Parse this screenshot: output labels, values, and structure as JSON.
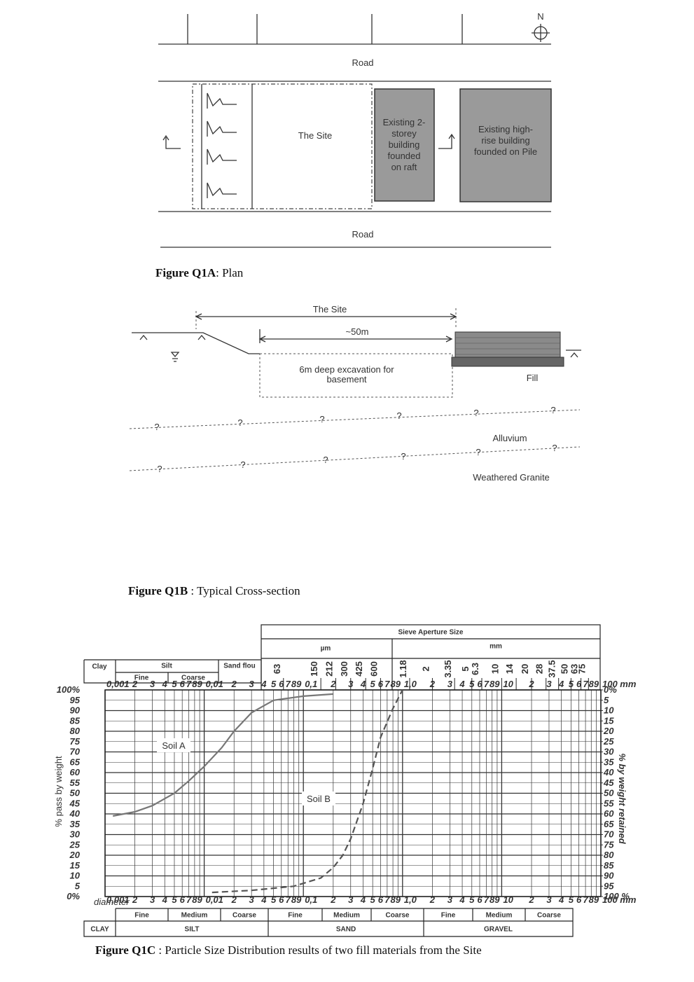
{
  "figure_a": {
    "north": "N",
    "road_top": "Road",
    "site": "The Site",
    "building_1_lines": [
      "Existing 2-",
      "storey",
      "building",
      "founded",
      "on raft"
    ],
    "building_2_lines": [
      "Existing high-",
      "rise building",
      "founded on Pile"
    ],
    "road_bottom": "Road",
    "caption_label": "Figure Q1A",
    "caption_text": ": Plan"
  },
  "figure_b": {
    "site": "The Site",
    "width": "~50m",
    "excavation_lines": [
      "6m deep excavation for",
      "basement"
    ],
    "fill": "Fill",
    "unknown": "?",
    "alluvium": "Alluvium",
    "granite": "Weathered Granite",
    "caption_label": "Figure Q1B",
    "caption_text": " : Typical Cross-section"
  },
  "chart_data": {
    "type": "line",
    "log_x": true,
    "ylabel": "% pass by weight",
    "y2label": "% by weight retained",
    "x_axis_label": "diameter",
    "xlim": [
      0.001,
      100
    ],
    "ylim": [
      0,
      100
    ],
    "y2lim": [
      100,
      0
    ],
    "xticks": [
      {
        "value": 0.001,
        "label": "0,001"
      },
      {
        "value": 0.002,
        "label": "2"
      },
      {
        "value": 0.003,
        "label": "3"
      },
      {
        "value": 0.004,
        "label": "4"
      },
      {
        "value": 0.005,
        "label": "5"
      },
      {
        "value": 0.006,
        "label": "6"
      },
      {
        "value": 0.007,
        "label": "7"
      },
      {
        "value": 0.008,
        "label": "8"
      },
      {
        "value": 0.009,
        "label": "9"
      },
      {
        "value": 0.01,
        "label": "0,01"
      },
      {
        "value": 0.02,
        "label": "2"
      },
      {
        "value": 0.03,
        "label": "3"
      },
      {
        "value": 0.04,
        "label": "4"
      },
      {
        "value": 0.05,
        "label": "5"
      },
      {
        "value": 0.06,
        "label": "6"
      },
      {
        "value": 0.07,
        "label": "7"
      },
      {
        "value": 0.08,
        "label": "8"
      },
      {
        "value": 0.09,
        "label": "9"
      },
      {
        "value": 0.1,
        "label": "0,1"
      },
      {
        "value": 0.2,
        "label": "2"
      },
      {
        "value": 0.3,
        "label": "3"
      },
      {
        "value": 0.4,
        "label": "4"
      },
      {
        "value": 0.5,
        "label": "5"
      },
      {
        "value": 0.6,
        "label": "6"
      },
      {
        "value": 0.7,
        "label": "7"
      },
      {
        "value": 0.8,
        "label": "8"
      },
      {
        "value": 0.9,
        "label": "9"
      },
      {
        "value": 1,
        "label": "1,0"
      },
      2,
      3,
      4,
      5,
      6,
      7,
      8,
      9,
      10,
      {
        "value": 20,
        "label": "2"
      },
      {
        "value": 30,
        "label": "3"
      },
      {
        "value": 40,
        "label": "4"
      },
      {
        "value": 50,
        "label": "5"
      },
      {
        "value": 60,
        "label": "6"
      },
      {
        "value": 70,
        "label": "7"
      },
      {
        "value": 80,
        "label": "8"
      },
      {
        "value": 90,
        "label": "9"
      },
      {
        "value": 100,
        "label": "100 mm"
      }
    ],
    "yticks": [
      {
        "value": 0,
        "label": "0%"
      },
      5,
      10,
      15,
      20,
      25,
      30,
      35,
      40,
      45,
      50,
      55,
      60,
      65,
      70,
      75,
      80,
      85,
      90,
      95,
      {
        "value": 100,
        "label": "100%"
      }
    ],
    "y2ticks": [
      {
        "value": 0,
        "label": "0%"
      },
      5,
      10,
      15,
      20,
      25,
      30,
      35,
      40,
      45,
      50,
      55,
      60,
      65,
      70,
      75,
      80,
      85,
      90,
      95,
      {
        "value": 100,
        "label": "100 %"
      }
    ],
    "sieve_title": "Sieve Aperture Size",
    "sieve_units": [
      "µm",
      "mm"
    ],
    "sieves": [
      {
        "value": 0.063,
        "label": "63"
      },
      {
        "value": 0.15,
        "label": "150"
      },
      {
        "value": 0.212,
        "label": "212"
      },
      {
        "value": 0.3,
        "label": "300"
      },
      {
        "value": 0.425,
        "label": "425"
      },
      {
        "value": 0.6,
        "label": "600"
      },
      1.18,
      2,
      3.35,
      5,
      6.3,
      10,
      14,
      20,
      28,
      37.5,
      50,
      63,
      75
    ],
    "top_table": {
      "clay": "Clay",
      "silt": "Silt",
      "fine": "Fine",
      "coarse": "Coarse",
      "sand_flour": "Sand flou"
    },
    "bottom_table": {
      "sizes": [
        "Fine",
        "Medium",
        "Coarse",
        "Fine",
        "Medium",
        "Coarse",
        "Fine",
        "Medium",
        "Coarse"
      ],
      "classes": [
        "CLAY",
        "SILT",
        "SAND",
        "GRAVEL"
      ]
    },
    "series": [
      {
        "name": "Soil A",
        "color": "#777777",
        "dashed": false,
        "x": [
          0.0012,
          0.002,
          0.003,
          0.005,
          0.007,
          0.01,
          0.015,
          0.02,
          0.03,
          0.05,
          0.1,
          0.2
        ],
        "values": [
          39,
          41,
          44,
          50,
          56,
          63,
          72,
          80,
          89,
          95,
          97,
          98
        ]
      },
      {
        "name": "Soil B",
        "color": "#555555",
        "dashed": true,
        "x": [
          0.012,
          0.03,
          0.08,
          0.15,
          0.2,
          0.25,
          0.3,
          0.4,
          0.5,
          0.6,
          0.8,
          1
        ],
        "values": [
          2,
          3,
          5,
          9,
          14,
          20,
          28,
          45,
          62,
          77,
          91,
          100
        ]
      }
    ],
    "caption_label": "Figure Q1C",
    "caption_text": " : Particle Size Distribution results of two fill materials from the Site"
  }
}
